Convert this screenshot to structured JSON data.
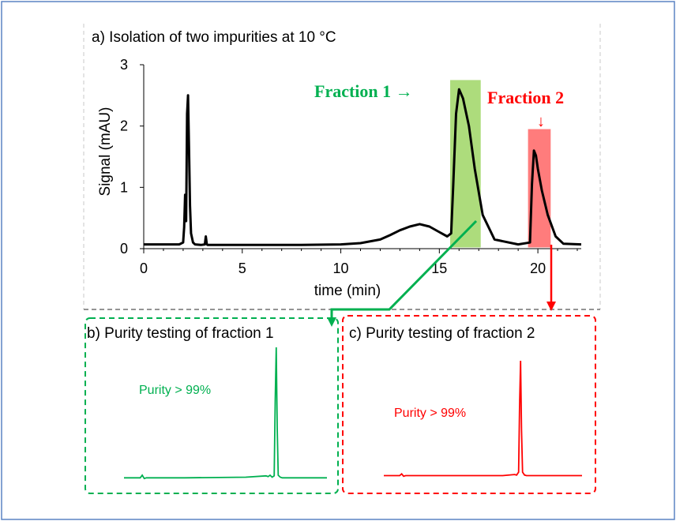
{
  "panel_a": {
    "title": "a) Isolation of two impurities at 10 °C",
    "ylabel": "Signal (mAU)",
    "xlabel": "time (min)",
    "fraction1_label": "Fraction 1 →",
    "fraction2_label": "Fraction 2",
    "fraction2_arrow": "↓"
  },
  "panel_b": {
    "title": "b) Purity testing of fraction 1",
    "purity": "Purity > 99%"
  },
  "panel_c": {
    "title": "c) Purity testing of fraction 2",
    "purity": "Purity > 99%"
  },
  "colors": {
    "fraction1": "#00b050",
    "fraction1_box": "#92d050",
    "fraction2": "#ff0000",
    "fraction2_box": "#ff5b5b",
    "trace": "#000000"
  },
  "chart_data": [
    {
      "type": "line",
      "title": "a) Isolation of two impurities at 10 °C",
      "xlabel": "time (min)",
      "ylabel": "Signal (mAU)",
      "xlim": [
        0,
        22.2
      ],
      "ylim": [
        0,
        3
      ],
      "x_ticks": [
        0,
        5,
        10,
        15,
        20
      ],
      "y_ticks": [
        0,
        1,
        2,
        3
      ],
      "grid": false,
      "series": [
        {
          "x": [
            0,
            1.8,
            2.0,
            2.05,
            2.1,
            2.15,
            2.2,
            2.25,
            2.3,
            2.35,
            2.4,
            2.5,
            2.6,
            2.9,
            3.1,
            3.15,
            3.2,
            3.25,
            3.35,
            5,
            8,
            10,
            11,
            12,
            12.5,
            13,
            13.5,
            14,
            14.5,
            15,
            15.4,
            15.6,
            15.7,
            15.85,
            16.0,
            16.2,
            16.5,
            16.8,
            17.2,
            17.8,
            19.0,
            19.6,
            19.7,
            19.8,
            19.9,
            20.0,
            20.2,
            20.5,
            20.9,
            21.3,
            22.2
          ],
          "y": [
            0.07,
            0.07,
            0.1,
            0.35,
            0.88,
            0.45,
            2.2,
            2.5,
            1.6,
            0.7,
            0.25,
            0.1,
            0.07,
            0.06,
            0.07,
            0.2,
            0.07,
            0.06,
            0.06,
            0.06,
            0.06,
            0.07,
            0.09,
            0.15,
            0.22,
            0.3,
            0.36,
            0.4,
            0.36,
            0.27,
            0.2,
            0.25,
            1.0,
            2.2,
            2.6,
            2.45,
            2.0,
            1.3,
            0.55,
            0.15,
            0.07,
            0.1,
            1.05,
            1.6,
            1.52,
            1.3,
            0.95,
            0.55,
            0.2,
            0.08,
            0.07
          ]
        }
      ]
    },
    {
      "type": "line",
      "title": "b) Purity testing of fraction 1",
      "series": [
        {
          "x": [
            0,
            0.08,
            0.09,
            0.1,
            0.11,
            0.3,
            0.6,
            0.7,
            0.71,
            0.72,
            0.73,
            0.74,
            0.745,
            0.75,
            0.755,
            0.76,
            0.77,
            0.78,
            1.0
          ],
          "y": [
            0.01,
            0.01,
            0.03,
            0.005,
            0.01,
            0.01,
            0.015,
            0.025,
            0.02,
            0.03,
            0.015,
            0.025,
            0.6,
            1.0,
            0.4,
            0.03,
            0.015,
            0.01,
            0.01
          ]
        }
      ]
    },
    {
      "type": "line",
      "title": "c) Purity testing of fraction 2",
      "series": [
        {
          "x": [
            0,
            0.08,
            0.09,
            0.1,
            0.11,
            0.3,
            0.6,
            0.66,
            0.67,
            0.68,
            0.685,
            0.69,
            0.695,
            0.7,
            0.71,
            0.72,
            1.0
          ],
          "y": [
            0.01,
            0.01,
            0.025,
            0.005,
            0.01,
            0.01,
            0.01,
            0.02,
            0.015,
            0.04,
            0.6,
            1.0,
            0.4,
            0.04,
            0.015,
            0.01,
            0.01
          ]
        }
      ]
    }
  ]
}
